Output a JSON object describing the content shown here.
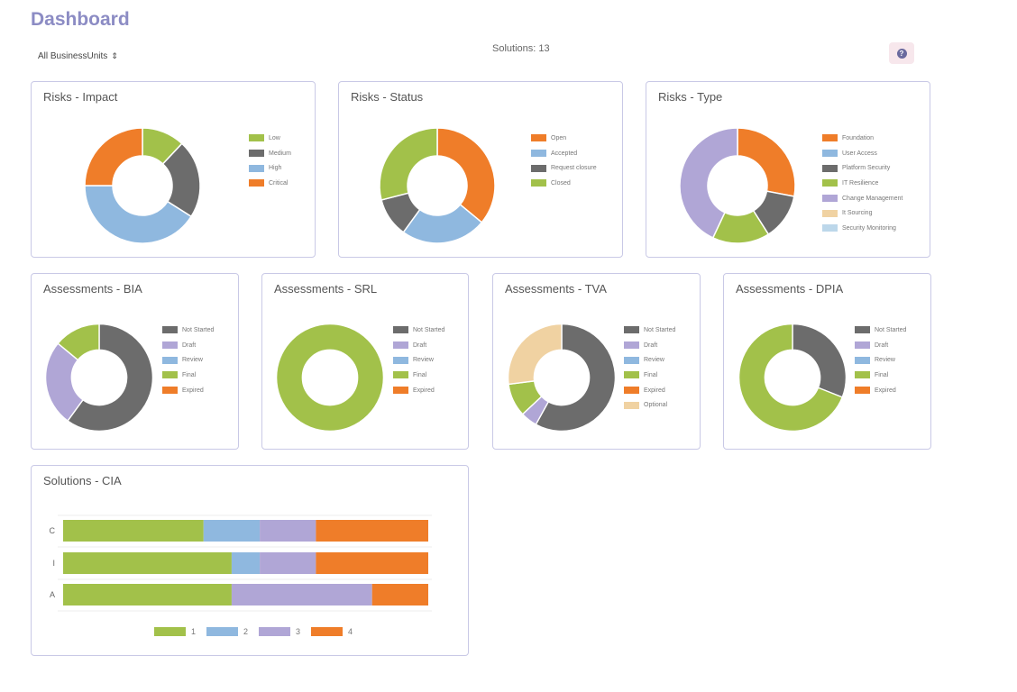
{
  "header": {
    "title": "Dashboard",
    "business_unit": "All BusinessUnits",
    "solutions_count": "Solutions: 13",
    "help_label": "?"
  },
  "colors": {
    "green": "#a2c14a",
    "blue": "#8fb8df",
    "gray": "#6c6c6c",
    "orange": "#ef7d29",
    "purple": "#b0a6d6",
    "tan": "#f0d2a2",
    "lightblue": "#bcd7ea"
  },
  "chart_data": [
    {
      "id": "risks-impact",
      "type": "pie",
      "title": "Risks - Impact",
      "labels": [
        "Low",
        "Medium",
        "High",
        "Critical"
      ],
      "colors": [
        "#a2c14a",
        "#6c6c6c",
        "#8fb8df",
        "#ef7d29"
      ],
      "slice_order": [
        0,
        1,
        2,
        3
      ],
      "values": [
        12,
        22,
        41,
        25
      ]
    },
    {
      "id": "risks-status",
      "type": "pie",
      "title": "Risks - Status",
      "labels": [
        "Open",
        "Accepted",
        "Request closure",
        "Closed"
      ],
      "colors": [
        "#ef7d29",
        "#8fb8df",
        "#6c6c6c",
        "#a2c14a"
      ],
      "slice_order": [
        0,
        1,
        2,
        3
      ],
      "values": [
        36,
        24,
        11,
        29
      ]
    },
    {
      "id": "risks-type",
      "type": "pie",
      "title": "Risks - Type",
      "labels": [
        "Foundation",
        "User Access",
        "Platform Security",
        "IT Resilience",
        "Change Management",
        "It Sourcing",
        "Security Monitoring"
      ],
      "colors": [
        "#ef7d29",
        "#8fb8df",
        "#6c6c6c",
        "#a2c14a",
        "#b0a6d6",
        "#f0d2a2",
        "#bcd7ea"
      ],
      "slice_order": [
        0,
        2,
        3,
        4,
        1,
        5,
        6
      ],
      "values": [
        28,
        0,
        13,
        16,
        43,
        0,
        0
      ]
    },
    {
      "id": "assessments-bia",
      "type": "pie",
      "title": "Assessments - BIA",
      "labels": [
        "Not Started",
        "Draft",
        "Review",
        "Final",
        "Expired"
      ],
      "colors": [
        "#6c6c6c",
        "#b0a6d6",
        "#8fb8df",
        "#a2c14a",
        "#ef7d29"
      ],
      "slice_order": [
        0,
        1,
        3,
        2,
        4
      ],
      "values": [
        60,
        26,
        0,
        14,
        0
      ]
    },
    {
      "id": "assessments-srl",
      "type": "pie",
      "title": "Assessments - SRL",
      "labels": [
        "Not Started",
        "Draft",
        "Review",
        "Final",
        "Expired"
      ],
      "colors": [
        "#6c6c6c",
        "#b0a6d6",
        "#8fb8df",
        "#a2c14a",
        "#ef7d29"
      ],
      "slice_order": [
        0,
        1,
        2,
        3,
        4
      ],
      "values": [
        0,
        0,
        0,
        100,
        0
      ]
    },
    {
      "id": "assessments-tva",
      "type": "pie",
      "title": "Assessments - TVA",
      "labels": [
        "Not Started",
        "Draft",
        "Review",
        "Final",
        "Expired",
        "Optional"
      ],
      "colors": [
        "#6c6c6c",
        "#b0a6d6",
        "#8fb8df",
        "#a2c14a",
        "#ef7d29",
        "#f0d2a2"
      ],
      "slice_order": [
        0,
        1,
        3,
        5,
        2,
        4
      ],
      "values": [
        58,
        5,
        0,
        10,
        0,
        27
      ]
    },
    {
      "id": "assessments-dpia",
      "type": "pie",
      "title": "Assessments - DPIA",
      "labels": [
        "Not Started",
        "Draft",
        "Review",
        "Final",
        "Expired"
      ],
      "colors": [
        "#6c6c6c",
        "#b0a6d6",
        "#8fb8df",
        "#a2c14a",
        "#ef7d29"
      ],
      "slice_order": [
        0,
        3,
        1,
        2,
        4
      ],
      "values": [
        31,
        0,
        0,
        69,
        0
      ]
    },
    {
      "id": "solutions-cia",
      "type": "bar",
      "orientation": "horizontal",
      "stacked": true,
      "title": "Solutions - CIA",
      "categories": [
        "C",
        "I",
        "A"
      ],
      "series": [
        {
          "name": "1",
          "color": "#a2c14a",
          "values": [
            5,
            6,
            6
          ]
        },
        {
          "name": "2",
          "color": "#8fb8df",
          "values": [
            2,
            1,
            0
          ]
        },
        {
          "name": "3",
          "color": "#b0a6d6",
          "values": [
            2,
            2,
            5
          ]
        },
        {
          "name": "4",
          "color": "#ef7d29",
          "values": [
            4,
            4,
            2
          ]
        }
      ],
      "xlim": [
        0,
        13
      ]
    }
  ]
}
